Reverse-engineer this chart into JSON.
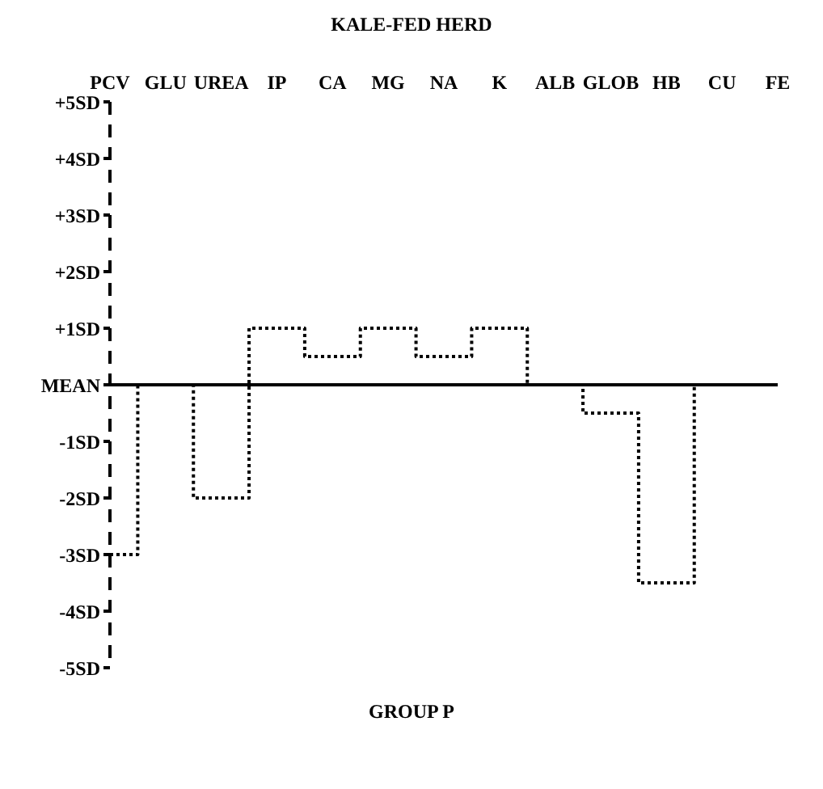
{
  "chart_data": {
    "type": "step",
    "title": "KALE-FED HERD",
    "xlabel": "GROUP P",
    "categories": [
      "PCV",
      "GLU",
      "UREA",
      "IP",
      "CA",
      "MG",
      "NA",
      "K",
      "ALB",
      "GLOB",
      "HB",
      "CU",
      "FE"
    ],
    "series": [
      {
        "color": "#000000",
        "values": [
          -3,
          0,
          -2,
          1,
          0.5,
          1,
          0.5,
          1,
          0,
          -0.5,
          -3.5,
          0,
          0
        ]
      }
    ],
    "ylim": [
      -5,
      5
    ],
    "yticks": [
      {
        "value": 5,
        "label": "+5SD"
      },
      {
        "value": 4,
        "label": "+4SD"
      },
      {
        "value": 3,
        "label": "+3SD"
      },
      {
        "value": 2,
        "label": "+2SD"
      },
      {
        "value": 1,
        "label": "+1SD"
      },
      {
        "value": 0,
        "label": "MEAN"
      },
      {
        "value": -1,
        "label": "-1SD"
      },
      {
        "value": -2,
        "label": "-2SD"
      },
      {
        "value": -3,
        "label": "-3SD"
      },
      {
        "value": -4,
        "label": "-4SD"
      },
      {
        "value": -5,
        "label": "-5SD"
      }
    ],
    "ref_lines": [
      {
        "axis": "y",
        "value": 0,
        "color": "#000000"
      }
    ],
    "grid": false,
    "legend": false,
    "marker": "none",
    "line_style": "dotted"
  }
}
